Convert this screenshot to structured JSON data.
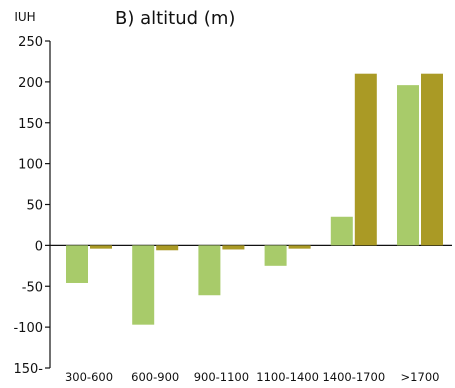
{
  "chart_data": {
    "type": "bar",
    "title": "B) altitud (m)",
    "ylabel": "IUH",
    "xlabel": "",
    "categories": [
      "300-600",
      "600-900",
      "900-1100",
      "1100-1400",
      "1400-1700",
      ">1700"
    ],
    "series": [
      {
        "values": [
          -46,
          -97,
          -61,
          -25,
          35,
          196
        ]
      },
      {
        "values": [
          -4,
          -6,
          -5,
          -4,
          210,
          210
        ]
      }
    ],
    "colors": [
      "#a8cb6a",
      "#aa9a25"
    ],
    "ylim": [
      -150,
      250
    ],
    "yticks": [
      250,
      200,
      150,
      100,
      50,
      0,
      -50,
      -100,
      -150
    ],
    "ytick_labels": [
      "250",
      "200",
      "150",
      "100",
      "50",
      "0",
      "-50",
      "-100",
      "150-"
    ],
    "grid": false,
    "legend": "none"
  }
}
